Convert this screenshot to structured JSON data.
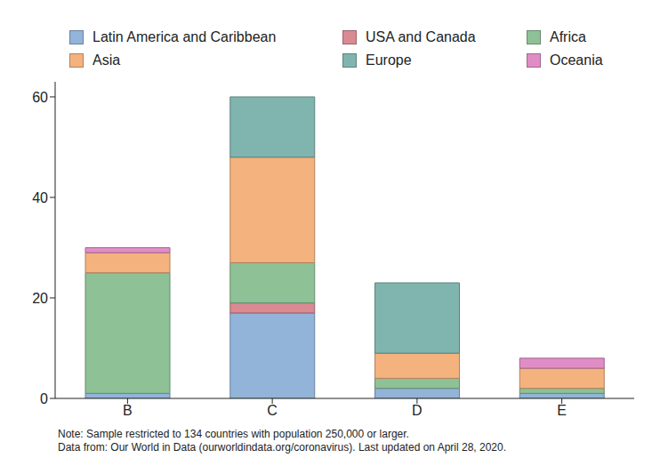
{
  "chart_data": {
    "type": "bar",
    "stacked": true,
    "legend": "top",
    "grid": false,
    "categories": [
      "B",
      "C",
      "D",
      "E"
    ],
    "series": [
      {
        "name": "Latin America and Caribbean",
        "color": "#92b4d8",
        "values": [
          1,
          17,
          2,
          1
        ]
      },
      {
        "name": "USA and Canada",
        "color": "#d98a93",
        "values": [
          0,
          2,
          0,
          0
        ]
      },
      {
        "name": "Africa",
        "color": "#8fc197",
        "values": [
          24,
          8,
          2,
          1
        ]
      },
      {
        "name": "Asia",
        "color": "#f4b27f",
        "values": [
          4,
          21,
          5,
          4
        ]
      },
      {
        "name": "Europe",
        "color": "#7fb5ae",
        "values": [
          0,
          12,
          14,
          0
        ]
      },
      {
        "name": "Oceania",
        "color": "#e08dc6",
        "values": [
          1,
          0,
          0,
          2
        ]
      }
    ],
    "ylim": [
      0,
      63
    ],
    "yticks": [
      0,
      20,
      40,
      60
    ],
    "notes": [
      "Note: Sample restricted to 134 countries with population 250,000 or larger.",
      "Data from: Our World in Data (ourworldindata.org/coronavirus). Last updated on April 28, 2020."
    ]
  }
}
